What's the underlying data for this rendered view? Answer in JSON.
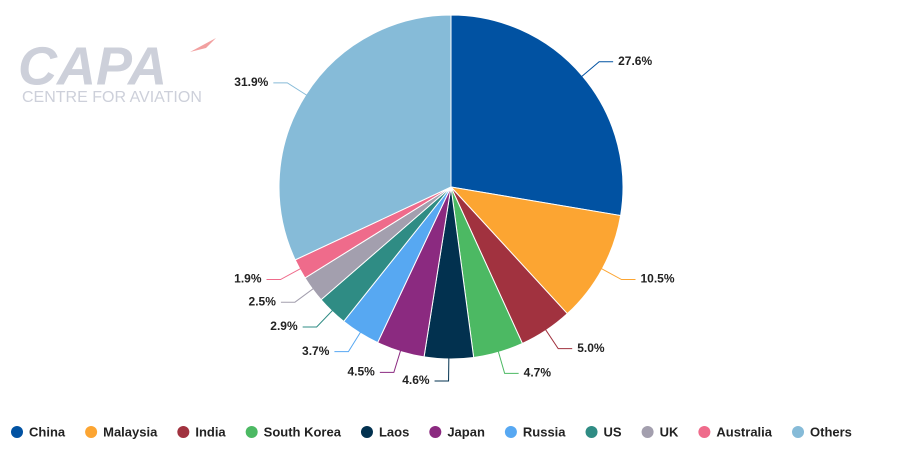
{
  "logo": {
    "name": "CAPA",
    "tagline": "CENTRE FOR AVIATION"
  },
  "chart_data": {
    "type": "pie",
    "categories": [
      "China",
      "Malaysia",
      "India",
      "South Korea",
      "Laos",
      "Japan",
      "Russia",
      "US",
      "UK",
      "Australia",
      "Others"
    ],
    "values": [
      27.6,
      10.5,
      5.0,
      4.7,
      4.6,
      4.5,
      3.7,
      2.9,
      2.5,
      1.9,
      31.9
    ],
    "value_labels": [
      "27.6%",
      "10.5%",
      "5.0%",
      "4.7%",
      "4.6%",
      "4.5%",
      "3.7%",
      "2.9%",
      "2.5%",
      "1.9%",
      "31.9%"
    ],
    "colors": [
      "#0152a2",
      "#fca532",
      "#a1323f",
      "#4cb963",
      "#02314f",
      "#8b2a80",
      "#57a8f2",
      "#2f8c84",
      "#a39fae",
      "#ef6b8b",
      "#86bbd8"
    ],
    "legend": "bottom"
  }
}
